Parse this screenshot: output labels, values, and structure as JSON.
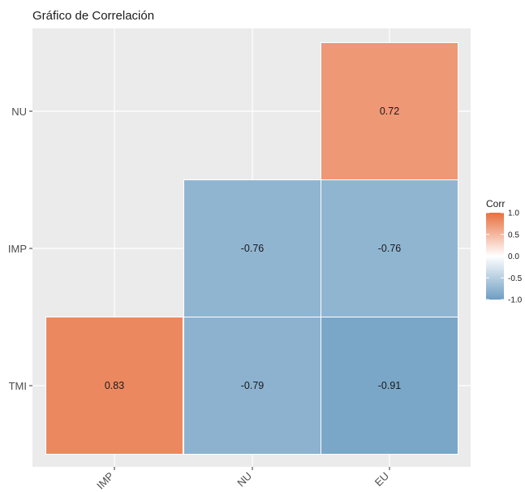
{
  "chart_data": {
    "type": "heatmap",
    "title": "Gráfico de Correlación",
    "x_categories": [
      "IMP",
      "NU",
      "EU"
    ],
    "y_categories": [
      "TMI",
      "IMP",
      "NU"
    ],
    "cells": [
      {
        "x": "IMP",
        "y": "TMI",
        "value": 0.83,
        "label": "0.83"
      },
      {
        "x": "NU",
        "y": "TMI",
        "value": -0.79,
        "label": "-0.79"
      },
      {
        "x": "EU",
        "y": "TMI",
        "value": -0.91,
        "label": "-0.91"
      },
      {
        "x": "NU",
        "y": "IMP",
        "value": -0.76,
        "label": "-0.76"
      },
      {
        "x": "EU",
        "y": "IMP",
        "value": -0.76,
        "label": "-0.76"
      },
      {
        "x": "EU",
        "y": "NU",
        "value": 0.72,
        "label": "0.72"
      }
    ],
    "legend": {
      "title": "Corr",
      "placement": "right",
      "ticks": [
        1.0,
        0.5,
        0.0,
        -0.5,
        -1.0
      ],
      "tick_labels": [
        "1.0",
        "0.5",
        "0.0",
        "-0.5",
        "-1.0"
      ],
      "colors": {
        "low": "#6d9ec2",
        "mid": "#ffffff",
        "high": "#e8703f"
      }
    },
    "value_range": [
      -1,
      1
    ],
    "panel_background": "#ebebeb",
    "grid": true
  }
}
